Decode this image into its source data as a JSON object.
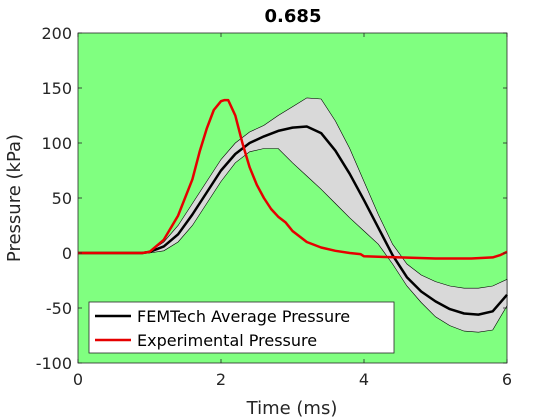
{
  "chart_data": {
    "type": "line",
    "title": "0.685",
    "xlabel": "Time (ms)",
    "ylabel": "Pressure (kPa)",
    "xlim": [
      0,
      6
    ],
    "ylim": [
      -100,
      200
    ],
    "xticks": [
      0,
      2,
      4,
      6
    ],
    "yticks": [
      -100,
      -50,
      0,
      50,
      100,
      150,
      200
    ],
    "grid": false,
    "legend_position": "bottom-left",
    "background_color": "#80ff80",
    "band": {
      "color": "#d9d9d9",
      "x": [
        0,
        0.9,
        1.0,
        1.2,
        1.4,
        1.6,
        1.8,
        2.0,
        2.2,
        2.4,
        2.6,
        2.8,
        3.0,
        3.2,
        3.4,
        3.6,
        3.8,
        4.0,
        4.2,
        4.4,
        4.6,
        4.8,
        5.0,
        5.2,
        5.4,
        5.6,
        5.8,
        6.0
      ],
      "upper": [
        0,
        0,
        1,
        10,
        25,
        45,
        65,
        85,
        100,
        110,
        116,
        125,
        133,
        141,
        140,
        120,
        95,
        65,
        35,
        8,
        -10,
        -20,
        -26,
        -30,
        -32,
        -32,
        -30,
        -24
      ],
      "lower": [
        0,
        0,
        0,
        2,
        10,
        25,
        45,
        65,
        82,
        92,
        95,
        95,
        82,
        70,
        58,
        45,
        32,
        20,
        8,
        -10,
        -30,
        -45,
        -58,
        -66,
        -71,
        -72,
        -70,
        -48
      ]
    },
    "series": [
      {
        "name": "FEMTech Average Pressure",
        "color": "#000000",
        "x": [
          0,
          0.9,
          1.0,
          1.2,
          1.4,
          1.6,
          1.8,
          2.0,
          2.2,
          2.4,
          2.6,
          2.8,
          3.0,
          3.2,
          3.4,
          3.6,
          3.8,
          4.0,
          4.2,
          4.4,
          4.6,
          4.8,
          5.0,
          5.2,
          5.4,
          5.6,
          5.8,
          6.0
        ],
        "y": [
          0,
          0,
          1,
          6,
          17,
          35,
          55,
          75,
          90,
          100,
          106,
          111,
          114,
          115,
          109,
          93,
          72,
          48,
          23,
          -2,
          -22,
          -35,
          -44,
          -51,
          -55,
          -56,
          -53,
          -38
        ]
      },
      {
        "name": "Experimental Pressure",
        "color": "#e60000",
        "x": [
          0,
          0.9,
          1.0,
          1.2,
          1.4,
          1.6,
          1.7,
          1.8,
          1.9,
          2.0,
          2.05,
          2.1,
          2.2,
          2.3,
          2.4,
          2.5,
          2.6,
          2.7,
          2.8,
          2.9,
          3.0,
          3.2,
          3.4,
          3.6,
          3.8,
          3.95,
          4.0,
          4.5,
          5.0,
          5.5,
          5.8,
          5.9,
          6.0
        ],
        "y": [
          0,
          0,
          1,
          12,
          34,
          67,
          92,
          113,
          130,
          138,
          139,
          139,
          125,
          100,
          78,
          62,
          50,
          40,
          33,
          28,
          20,
          10,
          5,
          2,
          0,
          -1,
          -3,
          -4,
          -5,
          -5,
          -4,
          -2,
          1
        ]
      }
    ]
  }
}
